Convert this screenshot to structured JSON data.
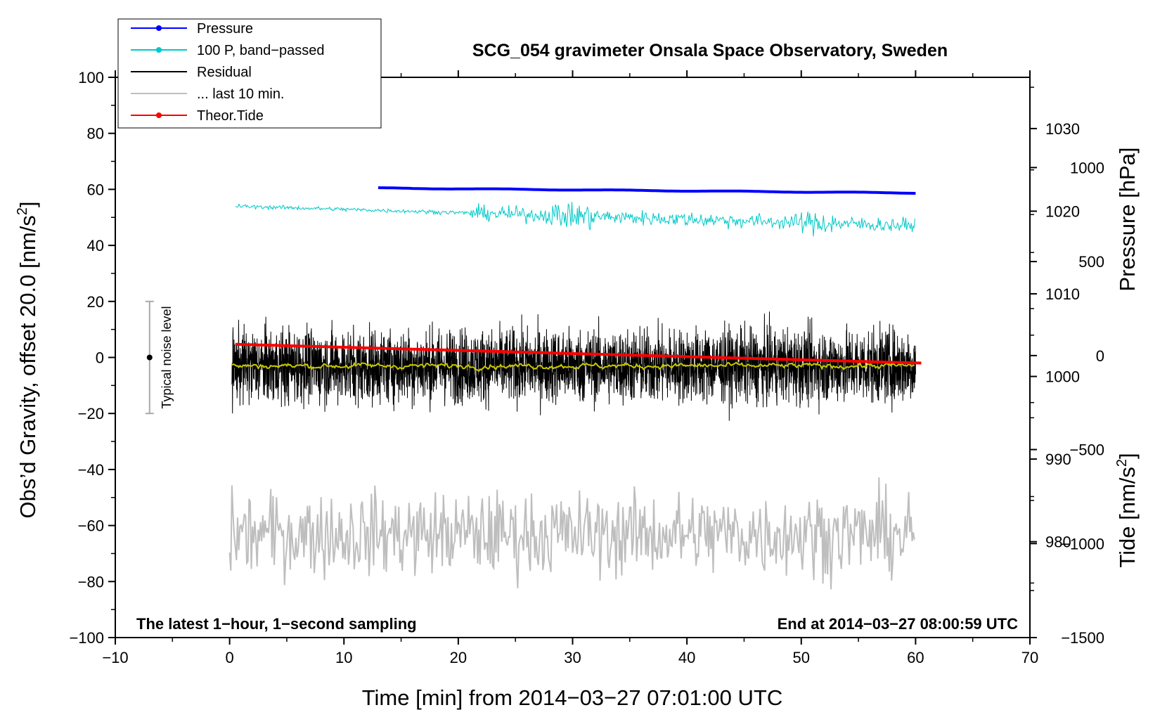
{
  "chart_data": {
    "type": "line",
    "title": "SCG_054 gravimeter Onsala Space Observatory, Sweden",
    "xlabel": "Time [min] from 2014−03−27 07:01:00 UTC",
    "ylabel_left": "Obs’d Gravity, offset 20.0 [nm/s²]",
    "ylabel_left_parts": {
      "main": "Obs’d Gravity, offset 20.0 [nm/s",
      "sup": "2",
      "close": "]"
    },
    "ylabel_right_top": "Pressure [hPa]",
    "ylabel_right_bottom": "Tide [nm/s²]",
    "ylabel_right_bottom_parts": {
      "main": "Tide [nm/s",
      "sup": "2",
      "close": "]"
    },
    "xlim": [
      -10,
      70
    ],
    "ylim": [
      -100,
      100
    ],
    "x_ticks": [
      "−10",
      "0",
      "10",
      "20",
      "30",
      "40",
      "50",
      "60",
      "70"
    ],
    "x_tick_values": [
      -10,
      0,
      10,
      20,
      30,
      40,
      50,
      60,
      70
    ],
    "y_ticks": [
      "−100",
      "−80",
      "−60",
      "−40",
      "−20",
      "0",
      "20",
      "40",
      "60",
      "80",
      "100"
    ],
    "y_tick_values": [
      -100,
      -80,
      -60,
      -40,
      -20,
      0,
      20,
      40,
      60,
      80,
      100
    ],
    "pressure_axis": {
      "range": [
        968.4,
        1036.2
      ],
      "ticks": [
        "980",
        "990",
        "1000",
        "1010",
        "1020",
        "1030"
      ],
      "tick_values": [
        980,
        990,
        1000,
        1010,
        1020,
        1030
      ]
    },
    "tide_axis": {
      "range": [
        -1500,
        1480
      ],
      "ticks": [
        "−1500",
        "−1000",
        "−500",
        "0",
        "500",
        "1000"
      ],
      "tick_values": [
        -1500,
        -1000,
        -500,
        0,
        500,
        1000
      ]
    },
    "notes": {
      "left": "The latest 1−hour, 1−second sampling",
      "right": "End at 2014−03−27 08:00:59 UTC"
    },
    "noise_bar": {
      "label": "Typical noise level",
      "x": -7,
      "center": 0,
      "low": -20,
      "high": 20
    },
    "legend": [
      {
        "label": "Pressure",
        "color": "#0000ff",
        "marker": true
      },
      {
        "label": "100 P, band−passed",
        "color": "#00c8c8",
        "marker": true
      },
      {
        "label": "Residual",
        "color": "#000000",
        "marker": false
      },
      {
        "label": "... last 10 min.",
        "color": "#bebebe",
        "marker": false
      },
      {
        "label": "Theor.Tide",
        "color": "#ff0000",
        "marker": true
      }
    ],
    "series": [
      {
        "name": "Pressure",
        "color": "#0000ff",
        "axis": "pressure",
        "x_range": [
          13,
          60
        ],
        "start": 1022.8,
        "end": 1022.2
      },
      {
        "name": "100 P, band−passed",
        "color": "#00c8c8",
        "axis": "left",
        "x_range": [
          0.5,
          60
        ],
        "start": 54,
        "end": 47
      },
      {
        "name": "Residual",
        "color": "#000000",
        "axis": "left",
        "x_range": [
          0.2,
          60
        ],
        "mean": -3,
        "amplitude": 12
      },
      {
        "name": "Residual smoothed",
        "color": "#c8c800",
        "axis": "left",
        "x_range": [
          0.2,
          60
        ],
        "mean": -3
      },
      {
        "name": "... last 10 min.",
        "color": "#bebebe",
        "axis": "left",
        "x_range": [
          0,
          60
        ],
        "mean": -63
      },
      {
        "name": "Theor.Tide",
        "color": "#ff0000",
        "axis": "tide",
        "x_range": [
          0.5,
          60.5
        ],
        "start": 60,
        "end": -40
      }
    ]
  }
}
